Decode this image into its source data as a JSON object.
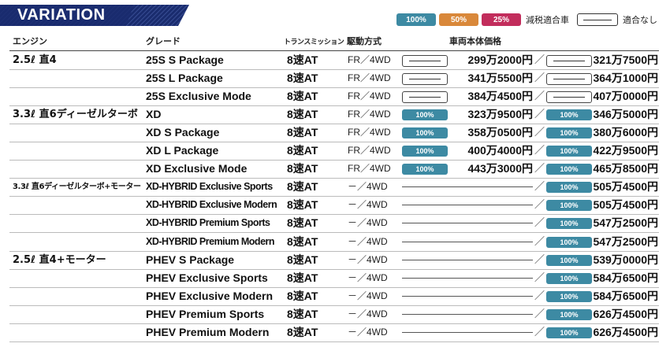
{
  "banner": {
    "title": "VARIATION"
  },
  "legend": [
    {
      "label": "100%",
      "color": "#3d8aa3",
      "type": "badge"
    },
    {
      "label": "50%",
      "color": "#d9883a",
      "type": "badge"
    },
    {
      "label": "25%",
      "color": "#c22d5c",
      "type": "badge"
    },
    {
      "label": "減税適合車",
      "type": "text"
    },
    {
      "label": "",
      "type": "box"
    },
    {
      "label": "適合なし",
      "type": "text"
    }
  ],
  "headers": {
    "engine": "エンジン",
    "grade": "グレード",
    "transmission": "トランスミッション",
    "drive": "駆動方式",
    "price": "車両本体価格"
  },
  "rows": [
    {
      "engine": "2.5ℓ 直4",
      "grade": "25S S Package",
      "trans": "8速AT",
      "drive": "FR／4WD",
      "fr_badge": "none",
      "fr_price": "299万2000円",
      "awd_badge": "none",
      "awd_price": "321万7500円"
    },
    {
      "engine": "",
      "grade": "25S L Package",
      "trans": "8速AT",
      "drive": "FR／4WD",
      "fr_badge": "none",
      "fr_price": "341万5500円",
      "awd_badge": "none",
      "awd_price": "364万1000円"
    },
    {
      "engine": "",
      "grade": "25S Exclusive Mode",
      "trans": "8速AT",
      "drive": "FR／4WD",
      "fr_badge": "none",
      "fr_price": "384万4500円",
      "awd_badge": "none",
      "awd_price": "407万0000円"
    },
    {
      "engine": "3.3ℓ 直6ディーゼルターボ",
      "grade": "XD",
      "trans": "8速AT",
      "drive": "FR／4WD",
      "fr_badge": "100%",
      "fr_price": "323万9500円",
      "awd_badge": "100%",
      "awd_price": "346万5000円"
    },
    {
      "engine": "",
      "grade": "XD S Package",
      "trans": "8速AT",
      "drive": "FR／4WD",
      "fr_badge": "100%",
      "fr_price": "358万0500円",
      "awd_badge": "100%",
      "awd_price": "380万6000円"
    },
    {
      "engine": "",
      "grade": "XD L Package",
      "trans": "8速AT",
      "drive": "FR／4WD",
      "fr_badge": "100%",
      "fr_price": "400万4000円",
      "awd_badge": "100%",
      "awd_price": "422万9500円"
    },
    {
      "engine": "",
      "grade": "XD Exclusive Mode",
      "trans": "8速AT",
      "drive": "FR／4WD",
      "fr_badge": "100%",
      "fr_price": "443万3000円",
      "awd_badge": "100%",
      "awd_price": "465万8500円"
    },
    {
      "engine": "3.3ℓ 直6ディーゼルターボ+モーター",
      "grade": "XD-HYBRID Exclusive Sports",
      "trans": "8速AT",
      "drive": "－／4WD",
      "fr_badge": "",
      "fr_price": "",
      "awd_badge": "100%",
      "awd_price": "505万4500円"
    },
    {
      "engine": "",
      "grade": "XD-HYBRID Exclusive Modern",
      "trans": "8速AT",
      "drive": "－／4WD",
      "fr_badge": "",
      "fr_price": "",
      "awd_badge": "100%",
      "awd_price": "505万4500円"
    },
    {
      "engine": "",
      "grade": "XD-HYBRID Premium Sports",
      "trans": "8速AT",
      "drive": "－／4WD",
      "fr_badge": "",
      "fr_price": "",
      "awd_badge": "100%",
      "awd_price": "547万2500円"
    },
    {
      "engine": "",
      "grade": "XD-HYBRID Premium Modern",
      "trans": "8速AT",
      "drive": "－／4WD",
      "fr_badge": "",
      "fr_price": "",
      "awd_badge": "100%",
      "awd_price": "547万2500円"
    },
    {
      "engine": "2.5ℓ 直4+モーター",
      "grade": "PHEV S Package",
      "trans": "8速AT",
      "drive": "－／4WD",
      "fr_badge": "",
      "fr_price": "",
      "awd_badge": "100%",
      "awd_price": "539万0000円"
    },
    {
      "engine": "",
      "grade": "PHEV Exclusive Sports",
      "trans": "8速AT",
      "drive": "－／4WD",
      "fr_badge": "",
      "fr_price": "",
      "awd_badge": "100%",
      "awd_price": "584万6500円"
    },
    {
      "engine": "",
      "grade": "PHEV Exclusive Modern",
      "trans": "8速AT",
      "drive": "－／4WD",
      "fr_badge": "",
      "fr_price": "",
      "awd_badge": "100%",
      "awd_price": "584万6500円"
    },
    {
      "engine": "",
      "grade": "PHEV Premium Sports",
      "trans": "8速AT",
      "drive": "－／4WD",
      "fr_badge": "",
      "fr_price": "",
      "awd_badge": "100%",
      "awd_price": "626万4500円"
    },
    {
      "engine": "",
      "grade": "PHEV Premium Modern",
      "trans": "8速AT",
      "drive": "－／4WD",
      "fr_badge": "",
      "fr_price": "",
      "awd_badge": "100%",
      "awd_price": "626万4500円"
    }
  ]
}
